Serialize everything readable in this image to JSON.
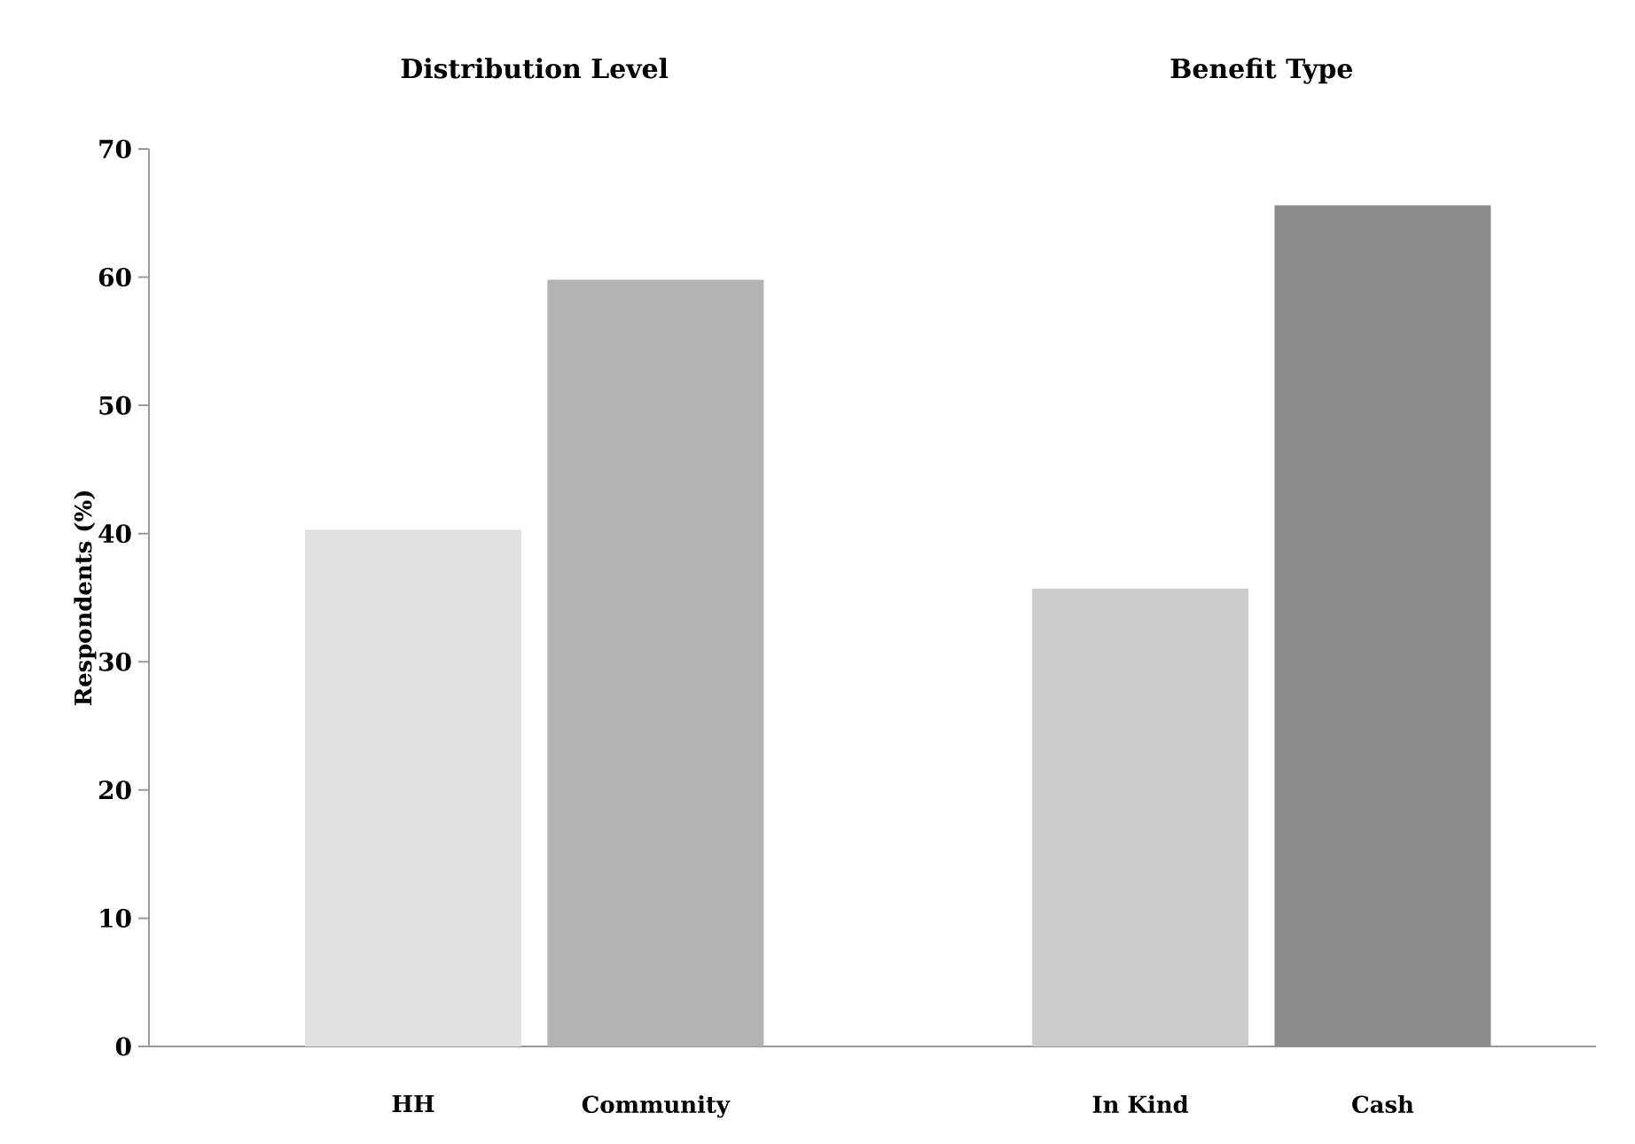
{
  "chart_data": {
    "type": "bar",
    "ylabel": "Respondents (%)",
    "categories": [
      "HH",
      "Community",
      null,
      "In Kind",
      "Cash"
    ],
    "values": [
      40.3,
      59.8,
      null,
      35.7,
      65.6
    ],
    "colors": [
      "#e0e0e0",
      "#b3b3b3",
      "#ffffff",
      "#cbcbcb",
      "#8c8c8c"
    ],
    "ylim": [
      0,
      70
    ],
    "yticks": [
      0,
      10,
      20,
      30,
      40,
      50,
      60,
      70
    ],
    "annotations": [
      "Distribution Level",
      "Benefit Type"
    ],
    "grid": false
  }
}
